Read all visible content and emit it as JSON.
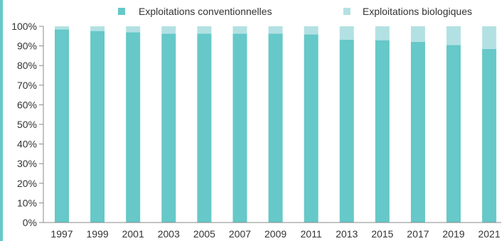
{
  "colors": {
    "conventional": "#66c8c8",
    "organic": "#b3e1e3",
    "accent_bar": "#66c8c8",
    "axis": "#888888",
    "text": "#333333"
  },
  "chart_data": {
    "type": "bar",
    "stacked": true,
    "title": "",
    "xlabel": "",
    "ylabel": "",
    "ylim": [
      0,
      100
    ],
    "y_ticks": [
      "0%",
      "10%",
      "20%",
      "30%",
      "40%",
      "50%",
      "60%",
      "70%",
      "80%",
      "90%",
      "100%"
    ],
    "grid": false,
    "legend_position": "top",
    "categories": [
      "1997",
      "1999",
      "2001",
      "2003",
      "2005",
      "2007",
      "2009",
      "2011",
      "2013",
      "2015",
      "2017",
      "2019",
      "2021"
    ],
    "series": [
      {
        "name": "Exploitations conventionnelles",
        "values": [
          98.4,
          97.6,
          97.0,
          96.2,
          96.2,
          96.2,
          96.2,
          95.9,
          93.2,
          92.9,
          92.1,
          90.4,
          88.4
        ]
      },
      {
        "name": "Exploitations biologiques",
        "values": [
          1.6,
          2.4,
          3.0,
          3.8,
          3.8,
          3.8,
          3.8,
          4.1,
          6.8,
          7.1,
          7.9,
          9.6,
          11.6
        ]
      }
    ]
  }
}
